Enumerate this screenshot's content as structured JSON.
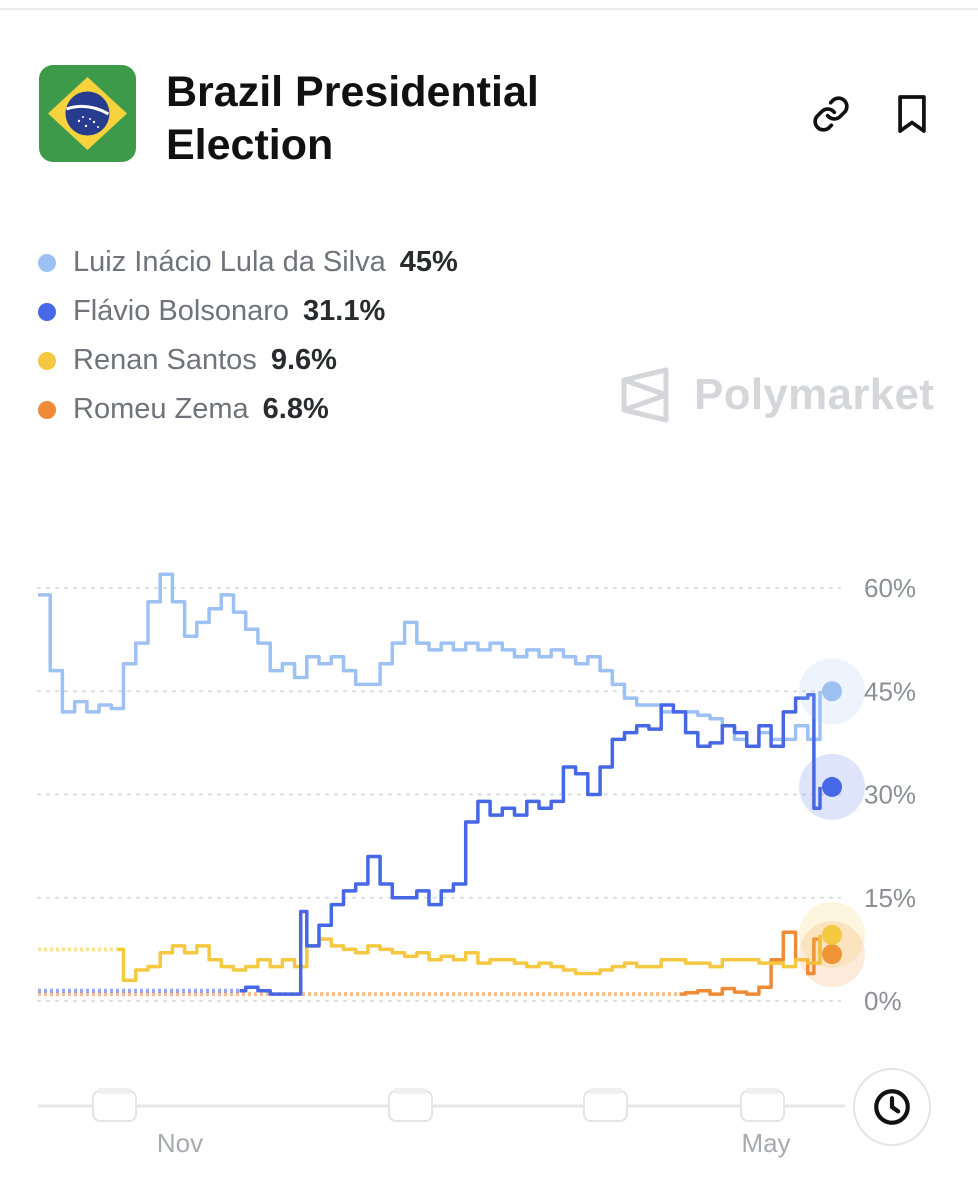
{
  "header": {
    "title": "Brazil Presidential Election",
    "flag_colors": {
      "green": "#3d9a4b",
      "yellow": "#f6d33c",
      "blue": "#283c8f"
    }
  },
  "icons": {
    "link": "link-icon",
    "bookmark": "bookmark-icon",
    "clock": "clock-icon",
    "logo": "polymarket-logo-icon"
  },
  "watermark": {
    "text": "Polymarket"
  },
  "legend": [
    {
      "name": "Luiz Inácio Lula da Silva",
      "value": "45%",
      "color": "#9dc1f3"
    },
    {
      "name": "Flávio Bolsonaro",
      "value": "31.1%",
      "color": "#4668e6"
    },
    {
      "name": "Renan Santos",
      "value": "9.6%",
      "color": "#f5c842"
    },
    {
      "name": "Romeu Zema",
      "value": "6.8%",
      "color": "#ef8a35"
    }
  ],
  "chart_data": {
    "type": "line",
    "title": "",
    "xlabel": "",
    "ylabel": "",
    "x_ticks": [
      "Nov",
      "May"
    ],
    "y_ticks": [
      "60%",
      "45%",
      "30%",
      "15%",
      "0%"
    ],
    "ylim": [
      0,
      60
    ],
    "grid": true,
    "legend": "top-left",
    "series": [
      {
        "name": "Luiz Inácio Lula da Silva",
        "color": "#9dc1f3",
        "dashed_to": 0,
        "values": [
          [
            0,
            59
          ],
          [
            1,
            48
          ],
          [
            2,
            42
          ],
          [
            3,
            43.5
          ],
          [
            4,
            42
          ],
          [
            5,
            43
          ],
          [
            6,
            42.5
          ],
          [
            7,
            49
          ],
          [
            8,
            52
          ],
          [
            9,
            58
          ],
          [
            10,
            62
          ],
          [
            11,
            58
          ],
          [
            12,
            53
          ],
          [
            13,
            55
          ],
          [
            14,
            57
          ],
          [
            15,
            59
          ],
          [
            16,
            56.5
          ],
          [
            17,
            54
          ],
          [
            18,
            52
          ],
          [
            19,
            48
          ],
          [
            20,
            49
          ],
          [
            21,
            47
          ],
          [
            22,
            50
          ],
          [
            23,
            49
          ],
          [
            24,
            50
          ],
          [
            25,
            48
          ],
          [
            26,
            46
          ],
          [
            27,
            46
          ],
          [
            28,
            49
          ],
          [
            29,
            52
          ],
          [
            30,
            55
          ],
          [
            31,
            52
          ],
          [
            32,
            51
          ],
          [
            33,
            52
          ],
          [
            34,
            51
          ],
          [
            35,
            52
          ],
          [
            36,
            51
          ],
          [
            37,
            52
          ],
          [
            38,
            51
          ],
          [
            39,
            50
          ],
          [
            40,
            51
          ],
          [
            41,
            50
          ],
          [
            42,
            51
          ],
          [
            43,
            50
          ],
          [
            44,
            49
          ],
          [
            45,
            50
          ],
          [
            46,
            48
          ],
          [
            47,
            46
          ],
          [
            48,
            44
          ],
          [
            49,
            43
          ],
          [
            50,
            43
          ],
          [
            51,
            42
          ],
          [
            52,
            42
          ],
          [
            53,
            42
          ],
          [
            54,
            41.5
          ],
          [
            55,
            41
          ],
          [
            56,
            40
          ],
          [
            57,
            38
          ],
          [
            58,
            37
          ],
          [
            59,
            39
          ],
          [
            60,
            38
          ],
          [
            61,
            38
          ],
          [
            62,
            40
          ],
          [
            63,
            38
          ],
          [
            64,
            45
          ]
        ]
      },
      {
        "name": "Flávio Bolsonaro",
        "color": "#4668e6",
        "dashed_to": 16.5,
        "values": [
          [
            0,
            1.5
          ],
          [
            16.5,
            1.5
          ],
          [
            17,
            2
          ],
          [
            18,
            1.5
          ],
          [
            19,
            1
          ],
          [
            20,
            1
          ],
          [
            21,
            1
          ],
          [
            21.5,
            13
          ],
          [
            22,
            8
          ],
          [
            23,
            11
          ],
          [
            24,
            14
          ],
          [
            25,
            16
          ],
          [
            26,
            17
          ],
          [
            27,
            21
          ],
          [
            28,
            17
          ],
          [
            29,
            15
          ],
          [
            30,
            15
          ],
          [
            31,
            16
          ],
          [
            32,
            14
          ],
          [
            33,
            16
          ],
          [
            34,
            17
          ],
          [
            35,
            26
          ],
          [
            36,
            29
          ],
          [
            37,
            27
          ],
          [
            38,
            28
          ],
          [
            39,
            27
          ],
          [
            40,
            29
          ],
          [
            41,
            28
          ],
          [
            42,
            29
          ],
          [
            43,
            34
          ],
          [
            44,
            33
          ],
          [
            45,
            30
          ],
          [
            46,
            34
          ],
          [
            47,
            38
          ],
          [
            48,
            39
          ],
          [
            49,
            40
          ],
          [
            50,
            39.5
          ],
          [
            51,
            43
          ],
          [
            52,
            42
          ],
          [
            53,
            39
          ],
          [
            54,
            37
          ],
          [
            55,
            37.5
          ],
          [
            56,
            40
          ],
          [
            57,
            39
          ],
          [
            58,
            37
          ],
          [
            59,
            40
          ],
          [
            60,
            37
          ],
          [
            61,
            42
          ],
          [
            62,
            44
          ],
          [
            63,
            44.5
          ],
          [
            63.5,
            28
          ],
          [
            64,
            31.1
          ]
        ]
      },
      {
        "name": "Renan Santos",
        "color": "#f5c842",
        "dashed_to": 6.5,
        "values": [
          [
            0,
            7.5
          ],
          [
            6.5,
            7.5
          ],
          [
            7,
            3
          ],
          [
            8,
            4.5
          ],
          [
            9,
            5
          ],
          [
            10,
            7
          ],
          [
            11,
            8
          ],
          [
            12,
            7
          ],
          [
            13,
            8
          ],
          [
            14,
            6
          ],
          [
            15,
            5
          ],
          [
            16,
            4.5
          ],
          [
            17,
            5
          ],
          [
            18,
            6
          ],
          [
            19,
            5
          ],
          [
            20,
            6
          ],
          [
            21,
            5
          ],
          [
            22,
            8
          ],
          [
            23,
            9
          ],
          [
            24,
            8
          ],
          [
            25,
            7.5
          ],
          [
            26,
            7
          ],
          [
            27,
            8
          ],
          [
            28,
            7.5
          ],
          [
            29,
            7
          ],
          [
            30,
            6.5
          ],
          [
            31,
            7
          ],
          [
            32,
            6
          ],
          [
            33,
            6.5
          ],
          [
            34,
            6
          ],
          [
            35,
            7
          ],
          [
            36,
            5.5
          ],
          [
            37,
            6
          ],
          [
            38,
            6
          ],
          [
            39,
            5.5
          ],
          [
            40,
            5
          ],
          [
            41,
            5.5
          ],
          [
            42,
            5
          ],
          [
            43,
            4.5
          ],
          [
            44,
            4
          ],
          [
            45,
            4
          ],
          [
            46,
            4.5
          ],
          [
            47,
            5
          ],
          [
            48,
            5.5
          ],
          [
            49,
            5
          ],
          [
            50,
            5
          ],
          [
            51,
            6
          ],
          [
            52,
            6
          ],
          [
            53,
            5.5
          ],
          [
            54,
            5.5
          ],
          [
            55,
            5
          ],
          [
            56,
            6
          ],
          [
            57,
            6
          ],
          [
            58,
            6
          ],
          [
            59,
            5.5
          ],
          [
            60,
            5.5
          ],
          [
            61,
            5
          ],
          [
            62,
            6
          ],
          [
            63,
            5.5
          ],
          [
            64,
            9.6
          ]
        ]
      },
      {
        "name": "Romeu Zema",
        "color": "#ef8a35",
        "dashed_to": 52.5,
        "values": [
          [
            0,
            1
          ],
          [
            52.5,
            1
          ],
          [
            53,
            1.2
          ],
          [
            54,
            1.5
          ],
          [
            55,
            1
          ],
          [
            56,
            1.8
          ],
          [
            57,
            1.3
          ],
          [
            58,
            1
          ],
          [
            59,
            2
          ],
          [
            60,
            6
          ],
          [
            61,
            10
          ],
          [
            62,
            6
          ],
          [
            63,
            4
          ],
          [
            63.5,
            9
          ],
          [
            64,
            6.8
          ]
        ]
      }
    ]
  }
}
